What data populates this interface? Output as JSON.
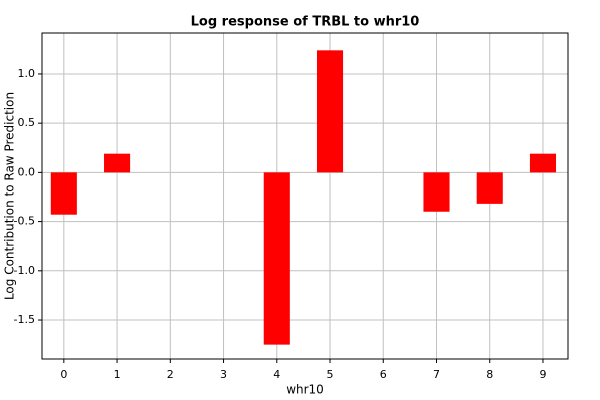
{
  "chart_data": {
    "type": "bar",
    "title": "Log response of TRBL to whr10",
    "x_label": "whr10",
    "y_label": "Log Contribution to Raw Prediction",
    "x": [
      0,
      1,
      2,
      3,
      4,
      5,
      6,
      7,
      8,
      9
    ],
    "values": [
      -0.43,
      0.19,
      0,
      0,
      -1.75,
      1.24,
      0,
      -0.4,
      -0.32,
      0.19
    ],
    "color": "#ff0000",
    "xlim": [
      -0.41,
      9.47
    ],
    "xticks": [
      0,
      1,
      2,
      3,
      4,
      5,
      6,
      7,
      8,
      9
    ],
    "ylim": [
      -1.896,
      1.416
    ],
    "yticks": [
      {
        "value": -1.5,
        "label": "-1.5"
      },
      {
        "value": -1,
        "label": "-1.0"
      },
      {
        "value": -0.5,
        "label": "-0.5"
      },
      {
        "value": 0,
        "label": "0.0"
      },
      {
        "value": 0.5,
        "label": "0.5"
      },
      {
        "value": 1,
        "label": "1.0"
      }
    ],
    "grid": true
  }
}
